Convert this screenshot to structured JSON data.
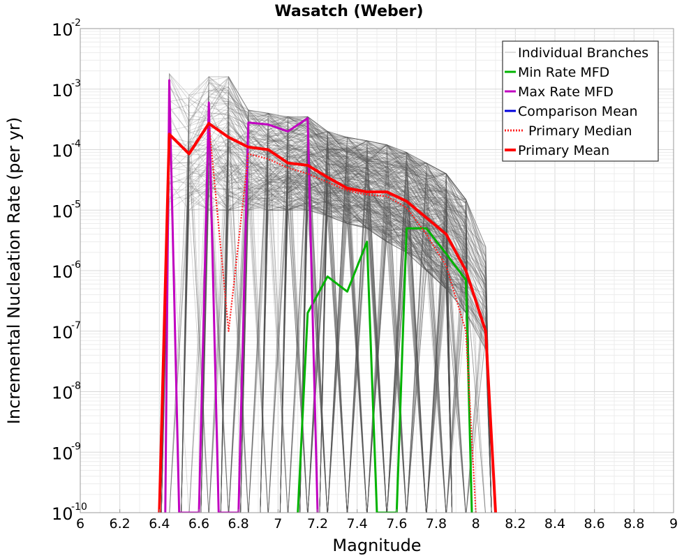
{
  "chart_data": {
    "type": "line",
    "title": "Wasatch (Weber)",
    "xlabel": "Magnitude",
    "ylabel": "Incremental Nucleation Rate (per yr)",
    "xlim": [
      6,
      9
    ],
    "ylim": [
      1e-10,
      0.01
    ],
    "yscale": "log",
    "grid": true,
    "legend_position": "top-right",
    "x_ticks": [
      "6",
      "6.2",
      "6.4",
      "6.6",
      "6.8",
      "7",
      "7.2",
      "7.4",
      "7.6",
      "7.8",
      "8",
      "8.2",
      "8.4",
      "8.6",
      "8.8",
      "9"
    ],
    "y_ticks": [
      {
        "base": "10",
        "exp": "-10",
        "value": 1e-10
      },
      {
        "base": "10",
        "exp": "-9",
        "value": 1e-09
      },
      {
        "base": "10",
        "exp": "-8",
        "value": 1e-08
      },
      {
        "base": "10",
        "exp": "-7",
        "value": 1e-07
      },
      {
        "base": "10",
        "exp": "-6",
        "value": 1e-06
      },
      {
        "base": "10",
        "exp": "-5",
        "value": 1e-05
      },
      {
        "base": "10",
        "exp": "-4",
        "value": 0.0001
      },
      {
        "base": "10",
        "exp": "-3",
        "value": 0.001
      },
      {
        "base": "10",
        "exp": "-2",
        "value": 0.01
      }
    ],
    "series": [
      {
        "name": "Individual Branches",
        "color": "#555555",
        "style": "thin-band",
        "x": [
          6.45,
          6.55,
          6.65,
          6.75,
          6.85,
          6.95,
          7.05,
          7.15,
          7.25,
          7.35,
          7.45,
          7.55,
          7.65,
          7.75,
          7.85,
          7.95,
          8.05
        ],
        "upper": [
          0.0018,
          0.0008,
          0.0016,
          0.0016,
          0.00045,
          0.0004,
          0.00035,
          0.00035,
          0.0002,
          0.00016,
          0.00014,
          0.00012,
          9e-05,
          6e-05,
          4e-05,
          1.5e-05,
          2.5e-06
        ],
        "lower": [
          1e-05,
          1e-05,
          1e-05,
          1e-05,
          1e-05,
          1e-05,
          1e-05,
          1e-05,
          8e-06,
          6e-06,
          5e-06,
          3e-06,
          2e-06,
          1e-06,
          5e-07,
          2e-07,
          5e-08
        ]
      },
      {
        "name": "Min Rate MFD",
        "color": "#00b300",
        "style": "solid",
        "x": [
          7.1,
          7.15,
          7.25,
          7.35,
          7.45,
          7.5,
          7.6,
          7.65,
          7.75,
          7.85,
          7.95,
          7.98
        ],
        "values": [
          1e-10,
          2e-07,
          8e-07,
          4.5e-07,
          3e-06,
          1e-10,
          1e-10,
          5e-06,
          5e-06,
          1.9e-06,
          7e-07,
          1e-10
        ]
      },
      {
        "name": "Max Rate MFD",
        "color": "#c000c0",
        "style": "solid",
        "x": [
          6.43,
          6.45,
          6.5,
          6.6,
          6.65,
          6.7,
          6.8,
          6.85,
          6.95,
          7.05,
          7.15,
          7.2
        ],
        "values": [
          1e-10,
          0.0014,
          1e-10,
          1e-10,
          0.0006,
          1e-10,
          1e-10,
          0.00028,
          0.00026,
          0.0002,
          0.00033,
          1e-10
        ]
      },
      {
        "name": "Comparison Mean",
        "color": "#0000dd",
        "style": "solid",
        "x": [],
        "values": []
      },
      {
        "name": "Primary Median",
        "color": "#ff2020",
        "style": "dotted",
        "x": [
          6.4,
          6.45,
          6.55,
          6.65,
          6.75,
          6.85,
          6.95,
          7.05,
          7.15,
          7.25,
          7.35,
          7.45,
          7.55,
          7.65,
          7.75,
          7.85,
          7.95,
          8.0
        ],
        "values": [
          1e-10,
          0.00017,
          9e-05,
          0.00028,
          1e-07,
          8.5e-05,
          7e-05,
          5e-05,
          4e-05,
          2.9e-05,
          2.1e-05,
          1.8e-05,
          1.7e-05,
          1.1e-05,
          4e-06,
          1.2e-06,
          1e-07,
          1e-10
        ]
      },
      {
        "name": "Primary Mean",
        "color": "#ff0000",
        "style": "thick",
        "x": [
          6.4,
          6.45,
          6.55,
          6.65,
          6.75,
          6.85,
          6.95,
          7.05,
          7.15,
          7.25,
          7.35,
          7.45,
          7.55,
          7.65,
          7.75,
          7.85,
          7.95,
          8.05,
          8.1
        ],
        "values": [
          1e-10,
          0.00018,
          8.5e-05,
          0.00027,
          0.00016,
          0.00011,
          0.0001,
          6e-05,
          5.5e-05,
          3.5e-05,
          2.3e-05,
          2e-05,
          2e-05,
          1.4e-05,
          7.5e-06,
          4e-06,
          1e-06,
          1e-07,
          1e-10
        ]
      }
    ]
  }
}
